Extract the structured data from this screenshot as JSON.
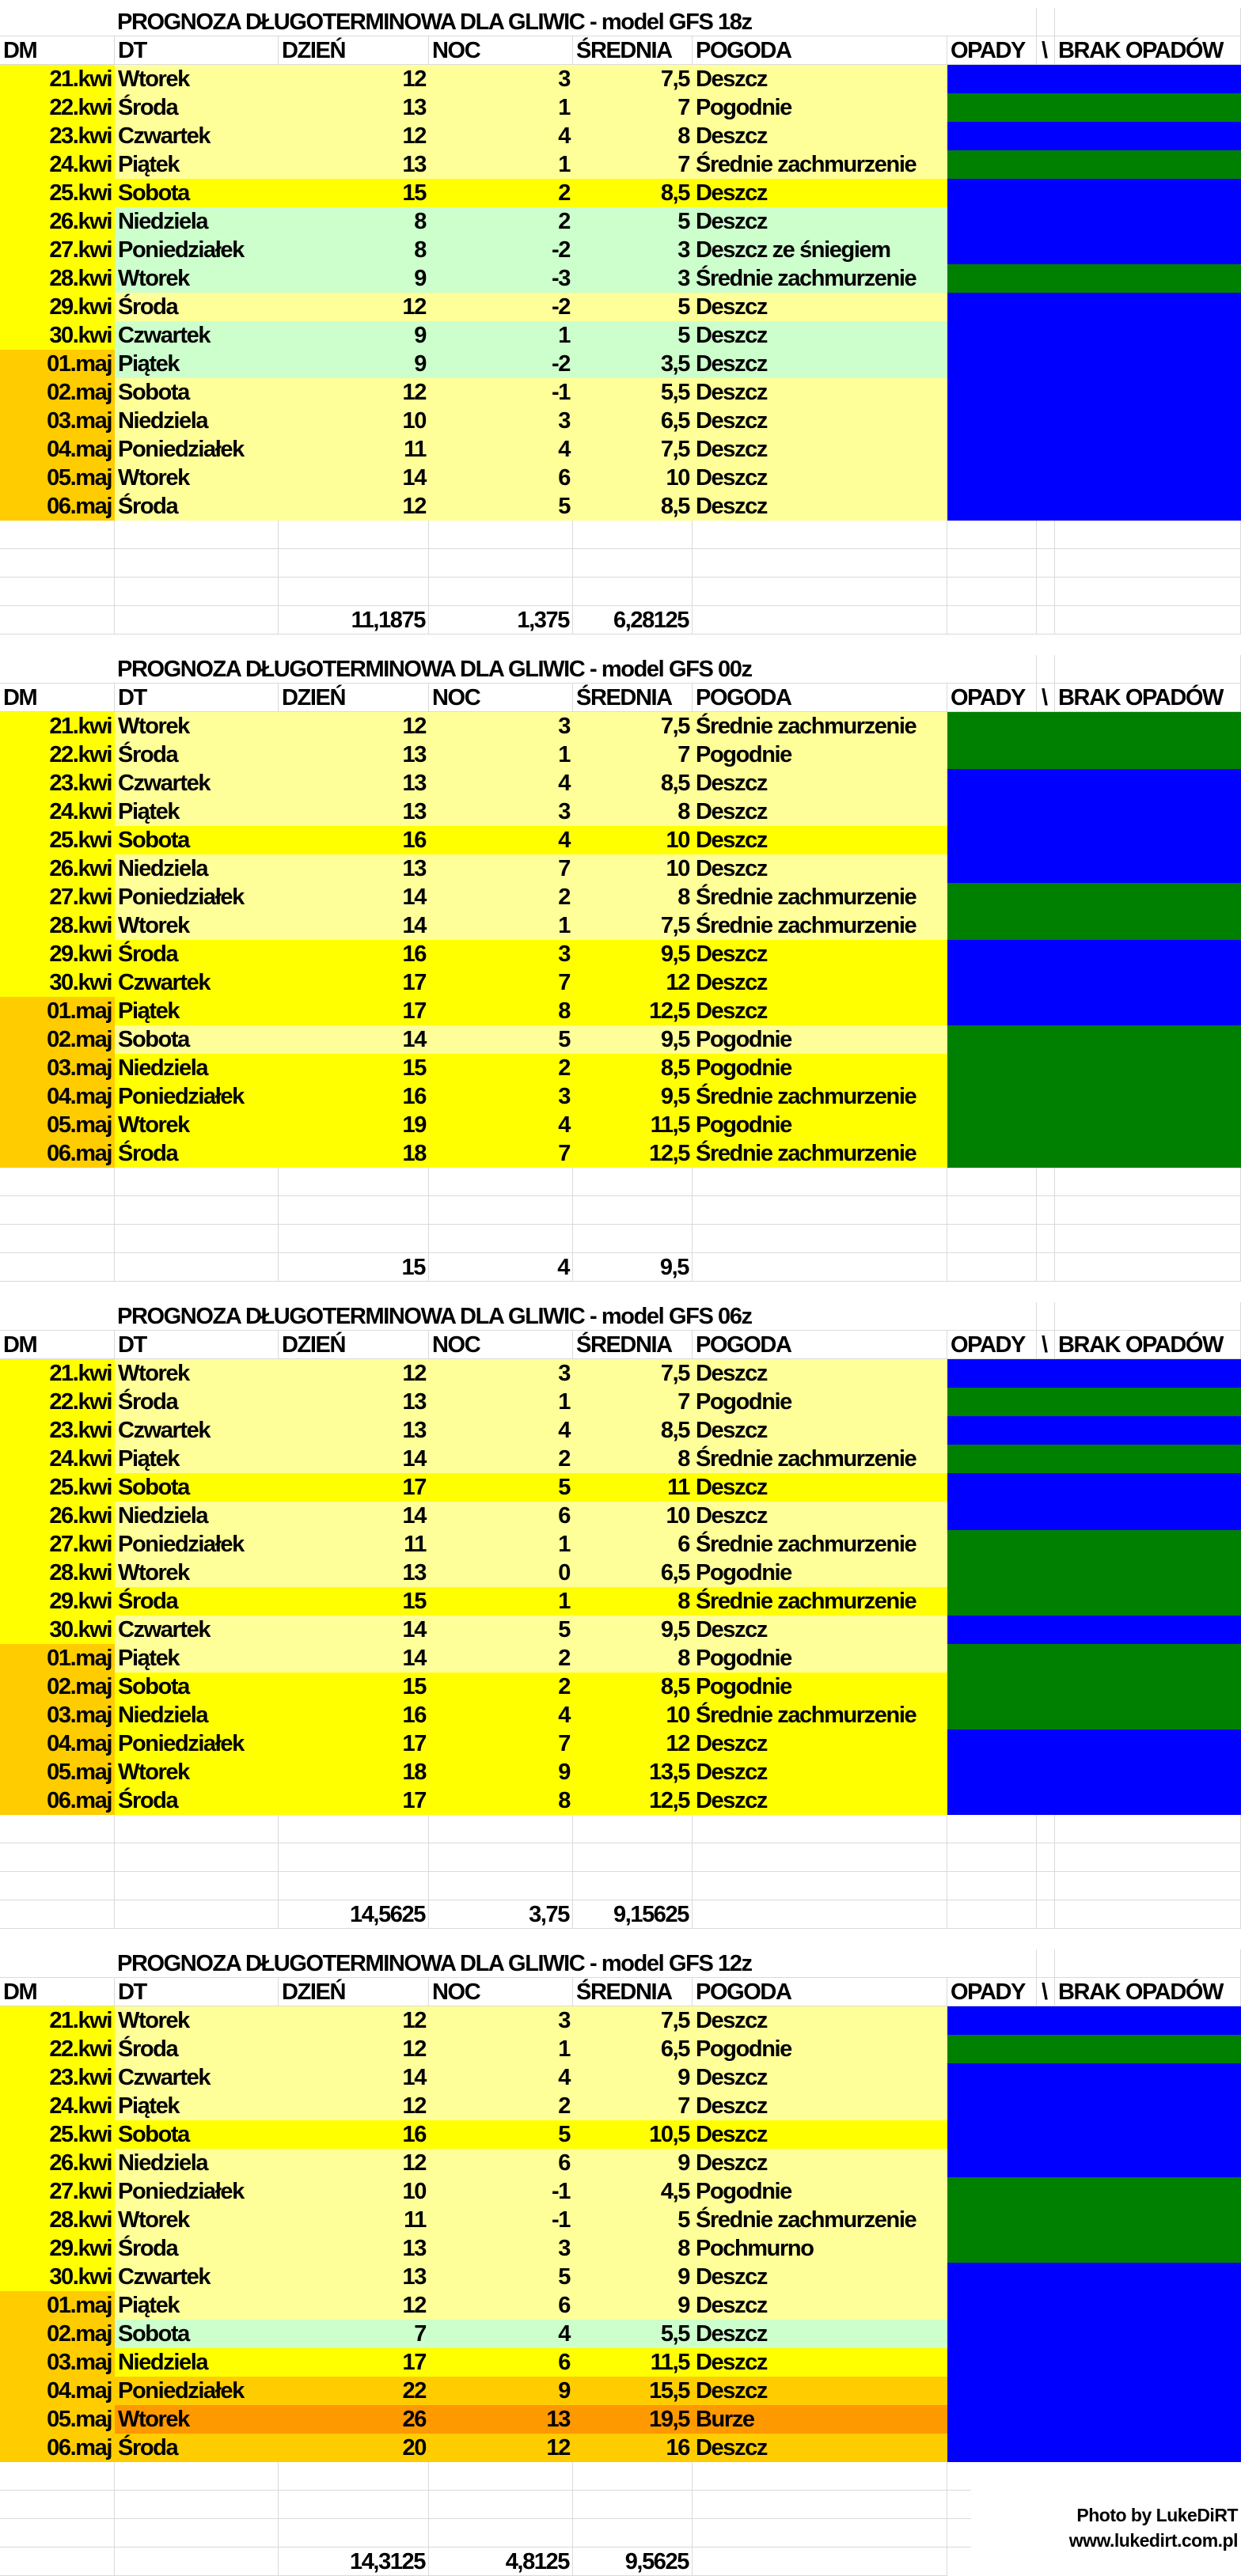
{
  "colors": {
    "light_yellow": "#FFFF99",
    "yellow": "#FFFF00",
    "light_green": "#CCFFCC",
    "orange": "#FFCC00",
    "dark_orange": "#FF9900",
    "rain": "#0000FF",
    "dry": "#008000",
    "dm_kwi": "#FFFF00",
    "dm_maj": "#FFCC00"
  },
  "headers": [
    "DM",
    "DT",
    "DZIEŃ",
    "NOC",
    "ŚREDNIA",
    "POGODA",
    "OPADY",
    "\\",
    "BRAK OPADÓW"
  ],
  "blocks": [
    {
      "title": "PROGNOZA DŁUGOTERMINOWA DLA GLIWIC - model GFS 18z",
      "rows": [
        {
          "dm": "21.kwi",
          "dt": "Wtorek",
          "dzien": "12",
          "noc": "3",
          "srednia": "7,5",
          "pogoda": "Deszcz",
          "bg": "light_yellow",
          "precip": "rain"
        },
        {
          "dm": "22.kwi",
          "dt": "Środa",
          "dzien": "13",
          "noc": "1",
          "srednia": "7",
          "pogoda": "Pogodnie",
          "bg": "light_yellow",
          "precip": "dry"
        },
        {
          "dm": "23.kwi",
          "dt": "Czwartek",
          "dzien": "12",
          "noc": "4",
          "srednia": "8",
          "pogoda": "Deszcz",
          "bg": "light_yellow",
          "precip": "rain"
        },
        {
          "dm": "24.kwi",
          "dt": "Piątek",
          "dzien": "13",
          "noc": "1",
          "srednia": "7",
          "pogoda": "Średnie zachmurzenie",
          "bg": "light_yellow",
          "precip": "dry"
        },
        {
          "dm": "25.kwi",
          "dt": "Sobota",
          "dzien": "15",
          "noc": "2",
          "srednia": "8,5",
          "pogoda": "Deszcz",
          "bg": "yellow",
          "precip": "rain"
        },
        {
          "dm": "26.kwi",
          "dt": "Niedziela",
          "dzien": "8",
          "noc": "2",
          "srednia": "5",
          "pogoda": "Deszcz",
          "bg": "light_green",
          "precip": "rain"
        },
        {
          "dm": "27.kwi",
          "dt": "Poniedziałek",
          "dzien": "8",
          "noc": "-2",
          "srednia": "3",
          "pogoda": "Deszcz ze śniegiem",
          "bg": "light_green",
          "precip": "rain"
        },
        {
          "dm": "28.kwi",
          "dt": "Wtorek",
          "dzien": "9",
          "noc": "-3",
          "srednia": "3",
          "pogoda": "Średnie zachmurzenie",
          "bg": "light_green",
          "precip": "dry"
        },
        {
          "dm": "29.kwi",
          "dt": "Środa",
          "dzien": "12",
          "noc": "-2",
          "srednia": "5",
          "pogoda": "Deszcz",
          "bg": "light_yellow",
          "precip": "rain"
        },
        {
          "dm": "30.kwi",
          "dt": "Czwartek",
          "dzien": "9",
          "noc": "1",
          "srednia": "5",
          "pogoda": "Deszcz",
          "bg": "light_green",
          "precip": "rain"
        },
        {
          "dm": "01.maj",
          "dt": "Piątek",
          "dzien": "9",
          "noc": "-2",
          "srednia": "3,5",
          "pogoda": "Deszcz",
          "bg": "light_green",
          "precip": "rain"
        },
        {
          "dm": "02.maj",
          "dt": "Sobota",
          "dzien": "12",
          "noc": "-1",
          "srednia": "5,5",
          "pogoda": "Deszcz",
          "bg": "light_yellow",
          "precip": "rain"
        },
        {
          "dm": "03.maj",
          "dt": "Niedziela",
          "dzien": "10",
          "noc": "3",
          "srednia": "6,5",
          "pogoda": "Deszcz",
          "bg": "light_yellow",
          "precip": "rain"
        },
        {
          "dm": "04.maj",
          "dt": "Poniedziałek",
          "dzien": "11",
          "noc": "4",
          "srednia": "7,5",
          "pogoda": "Deszcz",
          "bg": "light_yellow",
          "precip": "rain"
        },
        {
          "dm": "05.maj",
          "dt": "Wtorek",
          "dzien": "14",
          "noc": "6",
          "srednia": "10",
          "pogoda": "Deszcz",
          "bg": "light_yellow",
          "precip": "rain"
        },
        {
          "dm": "06.maj",
          "dt": "Środa",
          "dzien": "12",
          "noc": "5",
          "srednia": "8,5",
          "pogoda": "Deszcz",
          "bg": "light_yellow",
          "precip": "rain"
        }
      ],
      "summary": {
        "dzien": "11,1875",
        "noc": "1,375",
        "srednia": "6,28125"
      }
    },
    {
      "title": "PROGNOZA DŁUGOTERMINOWA DLA GLIWIC - model GFS 00z",
      "rows": [
        {
          "dm": "21.kwi",
          "dt": "Wtorek",
          "dzien": "12",
          "noc": "3",
          "srednia": "7,5",
          "pogoda": "Średnie zachmurzenie",
          "bg": "light_yellow",
          "precip": "dry"
        },
        {
          "dm": "22.kwi",
          "dt": "Środa",
          "dzien": "13",
          "noc": "1",
          "srednia": "7",
          "pogoda": "Pogodnie",
          "bg": "light_yellow",
          "precip": "dry"
        },
        {
          "dm": "23.kwi",
          "dt": "Czwartek",
          "dzien": "13",
          "noc": "4",
          "srednia": "8,5",
          "pogoda": "Deszcz",
          "bg": "light_yellow",
          "precip": "rain"
        },
        {
          "dm": "24.kwi",
          "dt": "Piątek",
          "dzien": "13",
          "noc": "3",
          "srednia": "8",
          "pogoda": "Deszcz",
          "bg": "light_yellow",
          "precip": "rain"
        },
        {
          "dm": "25.kwi",
          "dt": "Sobota",
          "dzien": "16",
          "noc": "4",
          "srednia": "10",
          "pogoda": "Deszcz",
          "bg": "yellow",
          "precip": "rain"
        },
        {
          "dm": "26.kwi",
          "dt": "Niedziela",
          "dzien": "13",
          "noc": "7",
          "srednia": "10",
          "pogoda": "Deszcz",
          "bg": "light_yellow",
          "precip": "rain"
        },
        {
          "dm": "27.kwi",
          "dt": "Poniedziałek",
          "dzien": "14",
          "noc": "2",
          "srednia": "8",
          "pogoda": "Średnie zachmurzenie",
          "bg": "light_yellow",
          "precip": "dry"
        },
        {
          "dm": "28.kwi",
          "dt": "Wtorek",
          "dzien": "14",
          "noc": "1",
          "srednia": "7,5",
          "pogoda": "Średnie zachmurzenie",
          "bg": "light_yellow",
          "precip": "dry"
        },
        {
          "dm": "29.kwi",
          "dt": "Środa",
          "dzien": "16",
          "noc": "3",
          "srednia": "9,5",
          "pogoda": "Deszcz",
          "bg": "yellow",
          "precip": "rain"
        },
        {
          "dm": "30.kwi",
          "dt": "Czwartek",
          "dzien": "17",
          "noc": "7",
          "srednia": "12",
          "pogoda": "Deszcz",
          "bg": "yellow",
          "precip": "rain"
        },
        {
          "dm": "01.maj",
          "dt": "Piątek",
          "dzien": "17",
          "noc": "8",
          "srednia": "12,5",
          "pogoda": "Deszcz",
          "bg": "yellow",
          "precip": "rain"
        },
        {
          "dm": "02.maj",
          "dt": "Sobota",
          "dzien": "14",
          "noc": "5",
          "srednia": "9,5",
          "pogoda": "Pogodnie",
          "bg": "light_yellow",
          "precip": "dry"
        },
        {
          "dm": "03.maj",
          "dt": "Niedziela",
          "dzien": "15",
          "noc": "2",
          "srednia": "8,5",
          "pogoda": "Pogodnie",
          "bg": "yellow",
          "precip": "dry"
        },
        {
          "dm": "04.maj",
          "dt": "Poniedziałek",
          "dzien": "16",
          "noc": "3",
          "srednia": "9,5",
          "pogoda": "Średnie zachmurzenie",
          "bg": "yellow",
          "precip": "dry"
        },
        {
          "dm": "05.maj",
          "dt": "Wtorek",
          "dzien": "19",
          "noc": "4",
          "srednia": "11,5",
          "pogoda": "Pogodnie",
          "bg": "yellow",
          "precip": "dry"
        },
        {
          "dm": "06.maj",
          "dt": "Środa",
          "dzien": "18",
          "noc": "7",
          "srednia": "12,5",
          "pogoda": "Średnie zachmurzenie",
          "bg": "yellow",
          "precip": "dry"
        }
      ],
      "summary": {
        "dzien": "15",
        "noc": "4",
        "srednia": "9,5"
      }
    },
    {
      "title": "PROGNOZA DŁUGOTERMINOWA DLA GLIWIC - model GFS 06z",
      "rows": [
        {
          "dm": "21.kwi",
          "dt": "Wtorek",
          "dzien": "12",
          "noc": "3",
          "srednia": "7,5",
          "pogoda": "Deszcz",
          "bg": "light_yellow",
          "precip": "rain"
        },
        {
          "dm": "22.kwi",
          "dt": "Środa",
          "dzien": "13",
          "noc": "1",
          "srednia": "7",
          "pogoda": "Pogodnie",
          "bg": "light_yellow",
          "precip": "dry"
        },
        {
          "dm": "23.kwi",
          "dt": "Czwartek",
          "dzien": "13",
          "noc": "4",
          "srednia": "8,5",
          "pogoda": "Deszcz",
          "bg": "light_yellow",
          "precip": "rain"
        },
        {
          "dm": "24.kwi",
          "dt": "Piątek",
          "dzien": "14",
          "noc": "2",
          "srednia": "8",
          "pogoda": "Średnie zachmurzenie",
          "bg": "light_yellow",
          "precip": "dry"
        },
        {
          "dm": "25.kwi",
          "dt": "Sobota",
          "dzien": "17",
          "noc": "5",
          "srednia": "11",
          "pogoda": "Deszcz",
          "bg": "yellow",
          "precip": "rain"
        },
        {
          "dm": "26.kwi",
          "dt": "Niedziela",
          "dzien": "14",
          "noc": "6",
          "srednia": "10",
          "pogoda": "Deszcz",
          "bg": "light_yellow",
          "precip": "rain"
        },
        {
          "dm": "27.kwi",
          "dt": "Poniedziałek",
          "dzien": "11",
          "noc": "1",
          "srednia": "6",
          "pogoda": "Średnie zachmurzenie",
          "bg": "light_yellow",
          "precip": "dry"
        },
        {
          "dm": "28.kwi",
          "dt": "Wtorek",
          "dzien": "13",
          "noc": "0",
          "srednia": "6,5",
          "pogoda": "Pogodnie",
          "bg": "light_yellow",
          "precip": "dry"
        },
        {
          "dm": "29.kwi",
          "dt": "Środa",
          "dzien": "15",
          "noc": "1",
          "srednia": "8",
          "pogoda": "Średnie zachmurzenie",
          "bg": "yellow",
          "precip": "dry"
        },
        {
          "dm": "30.kwi",
          "dt": "Czwartek",
          "dzien": "14",
          "noc": "5",
          "srednia": "9,5",
          "pogoda": "Deszcz",
          "bg": "light_yellow",
          "precip": "rain"
        },
        {
          "dm": "01.maj",
          "dt": "Piątek",
          "dzien": "14",
          "noc": "2",
          "srednia": "8",
          "pogoda": "Pogodnie",
          "bg": "light_yellow",
          "precip": "dry"
        },
        {
          "dm": "02.maj",
          "dt": "Sobota",
          "dzien": "15",
          "noc": "2",
          "srednia": "8,5",
          "pogoda": "Pogodnie",
          "bg": "yellow",
          "precip": "dry"
        },
        {
          "dm": "03.maj",
          "dt": "Niedziela",
          "dzien": "16",
          "noc": "4",
          "srednia": "10",
          "pogoda": "Średnie zachmurzenie",
          "bg": "yellow",
          "precip": "dry"
        },
        {
          "dm": "04.maj",
          "dt": "Poniedziałek",
          "dzien": "17",
          "noc": "7",
          "srednia": "12",
          "pogoda": "Deszcz",
          "bg": "yellow",
          "precip": "rain"
        },
        {
          "dm": "05.maj",
          "dt": "Wtorek",
          "dzien": "18",
          "noc": "9",
          "srednia": "13,5",
          "pogoda": "Deszcz",
          "bg": "yellow",
          "precip": "rain"
        },
        {
          "dm": "06.maj",
          "dt": "Środa",
          "dzien": "17",
          "noc": "8",
          "srednia": "12,5",
          "pogoda": "Deszcz",
          "bg": "yellow",
          "precip": "rain"
        }
      ],
      "summary": {
        "dzien": "14,5625",
        "noc": "3,75",
        "srednia": "9,15625"
      }
    },
    {
      "title": "PROGNOZA DŁUGOTERMINOWA DLA GLIWIC - model GFS 12z",
      "rows": [
        {
          "dm": "21.kwi",
          "dt": "Wtorek",
          "dzien": "12",
          "noc": "3",
          "srednia": "7,5",
          "pogoda": "Deszcz",
          "bg": "light_yellow",
          "precip": "rain"
        },
        {
          "dm": "22.kwi",
          "dt": "Środa",
          "dzien": "12",
          "noc": "1",
          "srednia": "6,5",
          "pogoda": "Pogodnie",
          "bg": "light_yellow",
          "precip": "dry"
        },
        {
          "dm": "23.kwi",
          "dt": "Czwartek",
          "dzien": "14",
          "noc": "4",
          "srednia": "9",
          "pogoda": "Deszcz",
          "bg": "light_yellow",
          "precip": "rain"
        },
        {
          "dm": "24.kwi",
          "dt": "Piątek",
          "dzien": "12",
          "noc": "2",
          "srednia": "7",
          "pogoda": "Deszcz",
          "bg": "light_yellow",
          "precip": "rain"
        },
        {
          "dm": "25.kwi",
          "dt": "Sobota",
          "dzien": "16",
          "noc": "5",
          "srednia": "10,5",
          "pogoda": "Deszcz",
          "bg": "yellow",
          "precip": "rain"
        },
        {
          "dm": "26.kwi",
          "dt": "Niedziela",
          "dzien": "12",
          "noc": "6",
          "srednia": "9",
          "pogoda": "Deszcz",
          "bg": "light_yellow",
          "precip": "rain"
        },
        {
          "dm": "27.kwi",
          "dt": "Poniedziałek",
          "dzien": "10",
          "noc": "-1",
          "srednia": "4,5",
          "pogoda": "Pogodnie",
          "bg": "light_yellow",
          "precip": "dry"
        },
        {
          "dm": "28.kwi",
          "dt": "Wtorek",
          "dzien": "11",
          "noc": "-1",
          "srednia": "5",
          "pogoda": "Średnie zachmurzenie",
          "bg": "light_yellow",
          "precip": "dry"
        },
        {
          "dm": "29.kwi",
          "dt": "Środa",
          "dzien": "13",
          "noc": "3",
          "srednia": "8",
          "pogoda": "Pochmurno",
          "bg": "light_yellow",
          "precip": "dry"
        },
        {
          "dm": "30.kwi",
          "dt": "Czwartek",
          "dzien": "13",
          "noc": "5",
          "srednia": "9",
          "pogoda": "Deszcz",
          "bg": "light_yellow",
          "precip": "rain"
        },
        {
          "dm": "01.maj",
          "dt": "Piątek",
          "dzien": "12",
          "noc": "6",
          "srednia": "9",
          "pogoda": "Deszcz",
          "bg": "light_yellow",
          "precip": "rain"
        },
        {
          "dm": "02.maj",
          "dt": "Sobota",
          "dzien": "7",
          "noc": "4",
          "srednia": "5,5",
          "pogoda": "Deszcz",
          "bg": "light_green",
          "precip": "rain"
        },
        {
          "dm": "03.maj",
          "dt": "Niedziela",
          "dzien": "17",
          "noc": "6",
          "srednia": "11,5",
          "pogoda": "Deszcz",
          "bg": "yellow",
          "precip": "rain"
        },
        {
          "dm": "04.maj",
          "dt": "Poniedziałek",
          "dzien": "22",
          "noc": "9",
          "srednia": "15,5",
          "pogoda": "Deszcz",
          "bg": "orange",
          "precip": "rain"
        },
        {
          "dm": "05.maj",
          "dt": "Wtorek",
          "dzien": "26",
          "noc": "13",
          "srednia": "19,5",
          "pogoda": "Burze",
          "bg": "dark_orange",
          "precip": "rain"
        },
        {
          "dm": "06.maj",
          "dt": "Środa",
          "dzien": "20",
          "noc": "12",
          "srednia": "16",
          "pogoda": "Deszcz",
          "bg": "orange",
          "precip": "rain"
        }
      ],
      "summary": {
        "dzien": "14,3125",
        "noc": "4,8125",
        "srednia": "9,5625"
      }
    }
  ],
  "footer": {
    "credit": "Photo by LukeDiRT",
    "website": "www.lukedirt.com.pl"
  }
}
